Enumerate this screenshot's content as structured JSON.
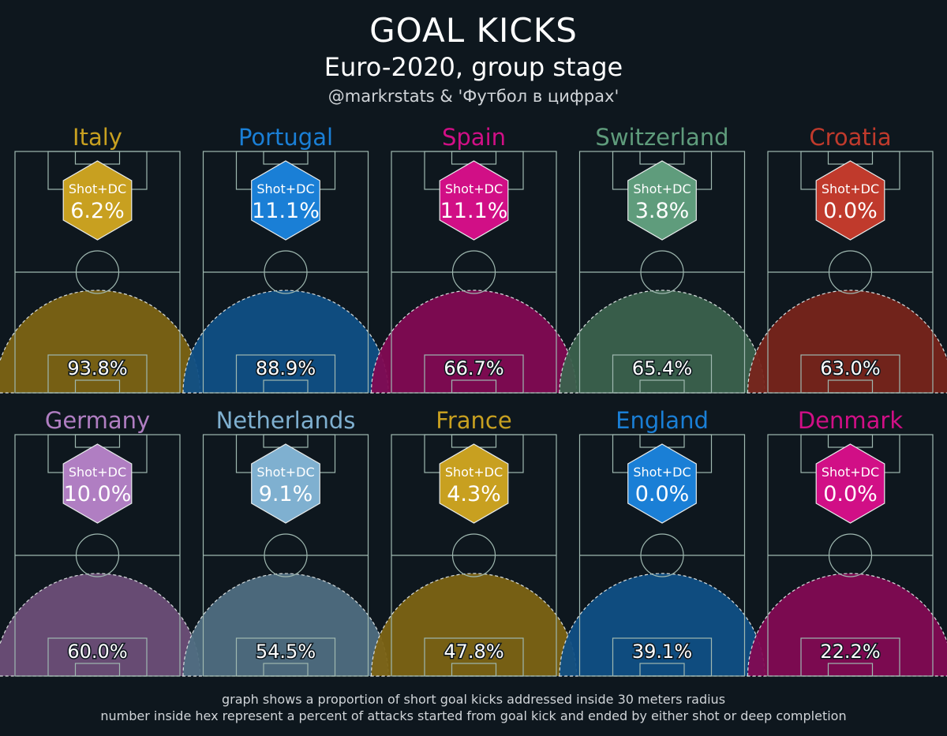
{
  "chart_data": {
    "type": "other",
    "title": "GOAL KICKS",
    "subtitle": "Euro-2020, group stage",
    "credit": "@markrstats & 'Футбол в цифрах'",
    "hex_label": "Shot+DC",
    "footnotes": [
      "graph shows a proportion of short goal kicks addressed inside 30 meters radius",
      "number inside hex represent a percent of attacks started from goal kick and ended by either shot or deep completion"
    ],
    "teams": [
      {
        "name": "Italy",
        "color": "#c8a020",
        "shot_dc": "6.2%",
        "short_pct": "93.8%"
      },
      {
        "name": "Portugal",
        "color": "#1a7fd6",
        "shot_dc": "11.1%",
        "short_pct": "88.9%"
      },
      {
        "name": "Spain",
        "color": "#d10f86",
        "shot_dc": "11.1%",
        "short_pct": "66.7%"
      },
      {
        "name": "Switzerland",
        "color": "#5f9c7c",
        "shot_dc": "3.8%",
        "short_pct": "65.4%"
      },
      {
        "name": "Croatia",
        "color": "#c03a2c",
        "shot_dc": "0.0%",
        "short_pct": "63.0%"
      },
      {
        "name": "Germany",
        "color": "#b07ec2",
        "shot_dc": "10.0%",
        "short_pct": "60.0%"
      },
      {
        "name": "Netherlands",
        "color": "#7fb0d0",
        "shot_dc": "9.1%",
        "short_pct": "54.5%"
      },
      {
        "name": "France",
        "color": "#c8a020",
        "shot_dc": "4.3%",
        "short_pct": "47.8%"
      },
      {
        "name": "England",
        "color": "#1a7fd6",
        "shot_dc": "0.0%",
        "short_pct": "39.1%"
      },
      {
        "name": "Denmark",
        "color": "#d10f86",
        "shot_dc": "0.0%",
        "short_pct": "22.2%"
      }
    ]
  }
}
